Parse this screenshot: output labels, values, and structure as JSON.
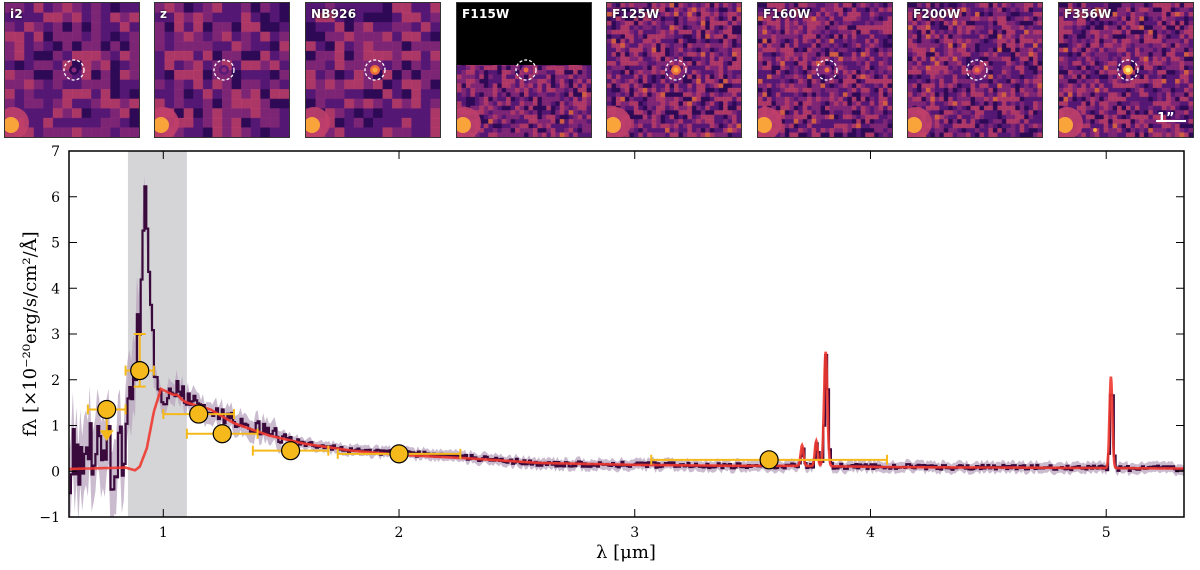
{
  "stamps": {
    "labels": [
      "i2",
      "z",
      "NB926",
      "F115W",
      "F125W",
      "F160W",
      "F200W",
      "F356W"
    ],
    "scale_bar_label": "1”",
    "colormap": [
      "#2e0a56",
      "#5a1a78",
      "#8b2a7a",
      "#c1406a",
      "#ea6c3e",
      "#f8a43a",
      "#fdf07a"
    ]
  },
  "chart_data": {
    "type": "line",
    "xlabel": "λ [μm]",
    "ylabel": "fλ [×10⁻²⁰erg/s/cm²/Å]",
    "xlim": [
      0.6,
      5.33
    ],
    "ylim": [
      -1,
      7
    ],
    "xticks": [
      1,
      2,
      3,
      4,
      5
    ],
    "yticks": [
      -1,
      0,
      1,
      2,
      3,
      4,
      5,
      6,
      7
    ],
    "shaded_region": {
      "x_start": 0.85,
      "x_end": 1.1,
      "color": "#d3d3d5"
    },
    "colors": {
      "spectrum": "#3a0a3c",
      "spectrum_error": "#b8a4bf",
      "model": "#f0392f",
      "photometry": "#f6b91c",
      "photometry_edge": "#000000",
      "errorbar": "#f6b91c"
    },
    "photometry": [
      {
        "band": "i2",
        "x": 0.76,
        "xerr": 0.08,
        "y": 1.35,
        "yerr": 0.15,
        "upper_limit": true
      },
      {
        "band": "z",
        "x": 0.9,
        "xerr": 0.06,
        "y": 2.2,
        "yerr_low": 0.35,
        "yerr_high": 0.8,
        "upper_limit": false
      },
      {
        "band": "F115W",
        "x": 1.15,
        "xerr": 0.15,
        "y": 1.25,
        "yerr": 0.1,
        "upper_limit": false
      },
      {
        "band": "F125W",
        "x": 1.25,
        "xerr": 0.15,
        "y": 0.82,
        "yerr": 0.1,
        "upper_limit": false
      },
      {
        "band": "F160W",
        "x": 1.54,
        "xerr": 0.16,
        "y": 0.45,
        "yerr": 0.06,
        "upper_limit": false
      },
      {
        "band": "F200W",
        "x": 2.0,
        "xerr": 0.26,
        "y": 0.38,
        "yerr": 0.06,
        "upper_limit": false
      },
      {
        "band": "F356W",
        "x": 3.57,
        "xerr": 0.5,
        "y": 0.25,
        "yerr": 0.06,
        "upper_limit": false
      }
    ],
    "model_knots": [
      [
        0.6,
        0.05
      ],
      [
        0.84,
        0.08
      ],
      [
        0.88,
        0.02
      ],
      [
        0.9,
        0.1
      ],
      [
        0.93,
        0.5
      ],
      [
        0.96,
        1.3
      ],
      [
        0.99,
        1.8
      ],
      [
        1.03,
        1.7
      ],
      [
        1.1,
        1.5
      ],
      [
        1.2,
        1.35
      ],
      [
        1.3,
        1.05
      ],
      [
        1.45,
        0.78
      ],
      [
        1.6,
        0.6
      ],
      [
        1.8,
        0.45
      ],
      [
        2.0,
        0.36
      ],
      [
        2.3,
        0.28
      ],
      [
        2.6,
        0.18
      ],
      [
        3.0,
        0.14
      ],
      [
        3.4,
        0.12
      ],
      [
        3.69,
        0.12
      ],
      [
        4.1,
        0.09
      ],
      [
        4.6,
        0.08
      ],
      [
        5.33,
        0.06
      ]
    ],
    "emission_lines": [
      {
        "x": 3.71,
        "amp": 0.45,
        "width": 0.006
      },
      {
        "x": 3.77,
        "amp": 0.55,
        "width": 0.006
      },
      {
        "x": 3.81,
        "amp": 2.5,
        "width": 0.007
      },
      {
        "x": 5.02,
        "amp": 2.0,
        "width": 0.006
      },
      {
        "x": 1.06,
        "amp": 0.05,
        "width": 0.01
      }
    ],
    "spectrum_knots": [
      [
        0.6,
        0.2
      ],
      [
        0.7,
        0.6
      ],
      [
        0.8,
        0.2
      ],
      [
        0.84,
        0.6
      ],
      [
        0.86,
        1.6
      ],
      [
        0.88,
        2.6
      ],
      [
        0.9,
        3.6
      ],
      [
        0.92,
        6.1
      ],
      [
        0.94,
        4.0
      ],
      [
        0.96,
        2.2
      ],
      [
        0.99,
        1.5
      ],
      [
        1.02,
        1.7
      ],
      [
        1.06,
        1.8
      ],
      [
        1.1,
        1.55
      ],
      [
        1.2,
        1.3
      ],
      [
        1.3,
        1.1
      ],
      [
        1.45,
        0.85
      ],
      [
        1.6,
        0.6
      ],
      [
        1.8,
        0.45
      ],
      [
        2.0,
        0.4
      ],
      [
        2.3,
        0.3
      ],
      [
        2.6,
        0.17
      ],
      [
        3.0,
        0.14
      ],
      [
        3.4,
        0.12
      ],
      [
        4.0,
        0.1
      ],
      [
        4.6,
        0.08
      ],
      [
        5.33,
        0.06
      ]
    ]
  }
}
